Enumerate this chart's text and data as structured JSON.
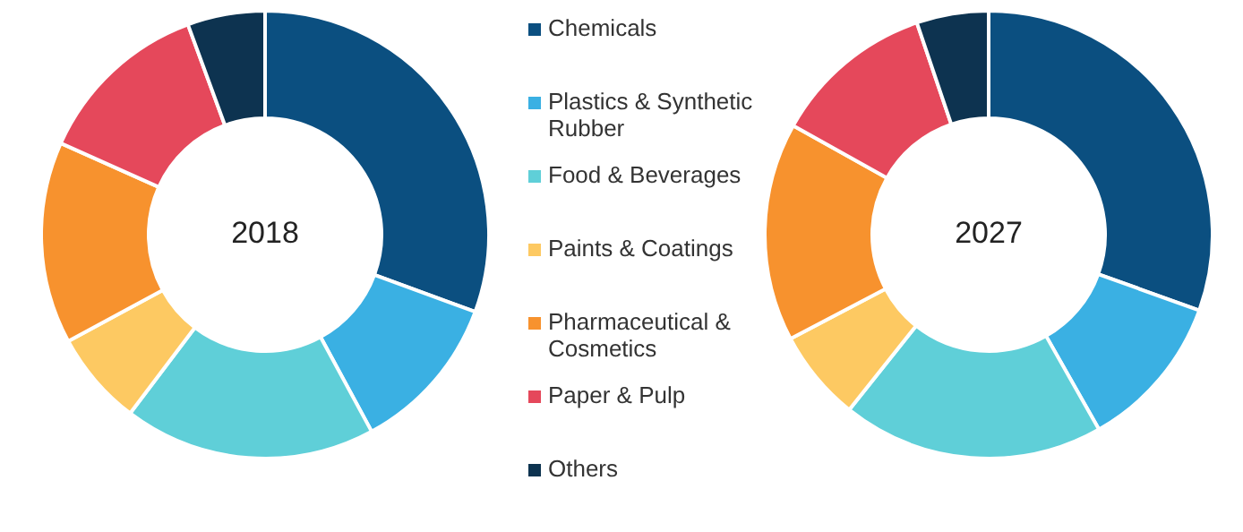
{
  "chart_data": {
    "type": "donut",
    "categories": [
      "Chemicals",
      "Plastics & Synthetic Rubber",
      "Food & Beverages",
      "Paints & Coatings",
      "Pharmaceutical & Cosmetics",
      "Paper & Pulp",
      "Others"
    ],
    "colors": [
      "#0b4f80",
      "#3ab0e3",
      "#5fcfd8",
      "#fdc962",
      "#f7922e",
      "#e5485b",
      "#0d3350"
    ],
    "legend": "right",
    "series": [
      {
        "name": "2018",
        "values": [
          30.6,
          11.5,
          18.2,
          6.8,
          14.6,
          12.7,
          5.6
        ]
      },
      {
        "name": "2027",
        "values": [
          30.5,
          11.3,
          18.9,
          6.6,
          15.8,
          11.7,
          5.2
        ]
      }
    ]
  }
}
